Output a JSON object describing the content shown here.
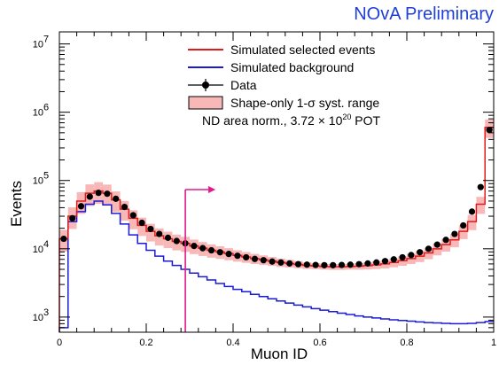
{
  "header": {
    "preliminary_label": "NOvA Preliminary"
  },
  "colors": {
    "brand": "#1f3fd8",
    "selected": "#e01b1b",
    "background": "#1b1bd6",
    "data": "#000000",
    "band": "#f8b8b8",
    "cut": "#e0188c"
  },
  "chart_data": {
    "type": "line",
    "xlabel": "Muon ID",
    "ylabel": "Events",
    "xlim": [
      0,
      1
    ],
    "ylim": [
      600,
      15000000
    ],
    "yscale": "log",
    "x_ticks": [
      "0",
      "0.2",
      "0.4",
      "0.6",
      "0.8",
      "1"
    ],
    "y_ticks": [
      {
        "base": "10",
        "exp": "3"
      },
      {
        "base": "10",
        "exp": "4"
      },
      {
        "base": "10",
        "exp": "5"
      },
      {
        "base": "10",
        "exp": "6"
      },
      {
        "base": "10",
        "exp": "7"
      }
    ],
    "legend": {
      "placement": "top-right",
      "entries": [
        {
          "label": "Simulated selected events",
          "style": "line",
          "series": "selected"
        },
        {
          "label": "Simulated background",
          "style": "line",
          "series": "background"
        },
        {
          "label": "Data",
          "style": "marker",
          "series": "data"
        },
        {
          "label": "Shape-only 1-σ syst. range",
          "style": "box",
          "series": "band"
        }
      ],
      "note": {
        "prefix": "ND area norm., 3.72 × 10",
        "exp": "20",
        "suffix": " POT"
      }
    },
    "cut": {
      "x": 0.29,
      "direction": "right"
    },
    "series": [
      {
        "name": "Simulated selected events",
        "key": "selected",
        "points": [
          [
            0.01,
            14000
          ],
          [
            0.03,
            30000
          ],
          [
            0.05,
            50000
          ],
          [
            0.07,
            65000
          ],
          [
            0.09,
            70000
          ],
          [
            0.11,
            65000
          ],
          [
            0.13,
            52000
          ],
          [
            0.15,
            38000
          ],
          [
            0.17,
            28000
          ],
          [
            0.19,
            22000
          ],
          [
            0.21,
            18000
          ],
          [
            0.23,
            15500
          ],
          [
            0.25,
            14000
          ],
          [
            0.27,
            12800
          ],
          [
            0.29,
            12000
          ],
          [
            0.31,
            11000
          ],
          [
            0.33,
            10200
          ],
          [
            0.35,
            9500
          ],
          [
            0.37,
            9000
          ],
          [
            0.39,
            8500
          ],
          [
            0.41,
            8000
          ],
          [
            0.43,
            7600
          ],
          [
            0.45,
            7200
          ],
          [
            0.47,
            6900
          ],
          [
            0.49,
            6600
          ],
          [
            0.51,
            6300
          ],
          [
            0.53,
            6100
          ],
          [
            0.55,
            5900
          ],
          [
            0.57,
            5700
          ],
          [
            0.59,
            5600
          ],
          [
            0.61,
            5500
          ],
          [
            0.63,
            5450
          ],
          [
            0.65,
            5450
          ],
          [
            0.67,
            5500
          ],
          [
            0.69,
            5550
          ],
          [
            0.71,
            5650
          ],
          [
            0.73,
            5800
          ],
          [
            0.75,
            6000
          ],
          [
            0.77,
            6300
          ],
          [
            0.79,
            6700
          ],
          [
            0.81,
            7200
          ],
          [
            0.83,
            7800
          ],
          [
            0.85,
            8700
          ],
          [
            0.87,
            10000
          ],
          [
            0.89,
            11500
          ],
          [
            0.91,
            13500
          ],
          [
            0.93,
            18000
          ],
          [
            0.95,
            25000
          ],
          [
            0.97,
            45000
          ],
          [
            0.99,
            600000
          ]
        ]
      },
      {
        "name": "Simulated background",
        "key": "background",
        "points": [
          [
            0.01,
            700
          ],
          [
            0.03,
            25000
          ],
          [
            0.05,
            35000
          ],
          [
            0.07,
            45000
          ],
          [
            0.09,
            50000
          ],
          [
            0.11,
            44000
          ],
          [
            0.13,
            33000
          ],
          [
            0.15,
            23000
          ],
          [
            0.17,
            16000
          ],
          [
            0.19,
            12000
          ],
          [
            0.21,
            9500
          ],
          [
            0.23,
            7800
          ],
          [
            0.25,
            6600
          ],
          [
            0.27,
            5700
          ],
          [
            0.29,
            5000
          ],
          [
            0.31,
            4400
          ],
          [
            0.33,
            3900
          ],
          [
            0.35,
            3500
          ],
          [
            0.37,
            3100
          ],
          [
            0.39,
            2800
          ],
          [
            0.41,
            2550
          ],
          [
            0.43,
            2350
          ],
          [
            0.45,
            2150
          ],
          [
            0.47,
            2000
          ],
          [
            0.49,
            1850
          ],
          [
            0.51,
            1720
          ],
          [
            0.53,
            1600
          ],
          [
            0.55,
            1500
          ],
          [
            0.57,
            1410
          ],
          [
            0.59,
            1330
          ],
          [
            0.61,
            1260
          ],
          [
            0.63,
            1200
          ],
          [
            0.65,
            1140
          ],
          [
            0.67,
            1090
          ],
          [
            0.69,
            1040
          ],
          [
            0.71,
            1000
          ],
          [
            0.73,
            970
          ],
          [
            0.75,
            940
          ],
          [
            0.77,
            910
          ],
          [
            0.79,
            890
          ],
          [
            0.81,
            870
          ],
          [
            0.83,
            850
          ],
          [
            0.85,
            830
          ],
          [
            0.87,
            820
          ],
          [
            0.89,
            810
          ],
          [
            0.91,
            800
          ],
          [
            0.93,
            800
          ],
          [
            0.95,
            810
          ],
          [
            0.97,
            830
          ],
          [
            0.99,
            860
          ]
        ]
      },
      {
        "name": "Data",
        "key": "data",
        "points": [
          [
            0.01,
            14000
          ],
          [
            0.03,
            28000
          ],
          [
            0.05,
            42000
          ],
          [
            0.07,
            58000
          ],
          [
            0.09,
            66000
          ],
          [
            0.11,
            64000
          ],
          [
            0.13,
            54000
          ],
          [
            0.15,
            41000
          ],
          [
            0.17,
            31000
          ],
          [
            0.19,
            24000
          ],
          [
            0.21,
            19500
          ],
          [
            0.23,
            16500
          ],
          [
            0.25,
            14500
          ],
          [
            0.27,
            13000
          ],
          [
            0.29,
            12000
          ],
          [
            0.31,
            11000
          ],
          [
            0.33,
            10200
          ],
          [
            0.35,
            9500
          ],
          [
            0.37,
            8900
          ],
          [
            0.39,
            8400
          ],
          [
            0.41,
            7900
          ],
          [
            0.43,
            7500
          ],
          [
            0.45,
            7100
          ],
          [
            0.47,
            6800
          ],
          [
            0.49,
            6500
          ],
          [
            0.51,
            6300
          ],
          [
            0.53,
            6100
          ],
          [
            0.55,
            5950
          ],
          [
            0.57,
            5850
          ],
          [
            0.59,
            5800
          ],
          [
            0.61,
            5750
          ],
          [
            0.63,
            5750
          ],
          [
            0.65,
            5800
          ],
          [
            0.67,
            5850
          ],
          [
            0.69,
            5950
          ],
          [
            0.71,
            6100
          ],
          [
            0.73,
            6300
          ],
          [
            0.75,
            6600
          ],
          [
            0.77,
            7000
          ],
          [
            0.79,
            7500
          ],
          [
            0.81,
            8100
          ],
          [
            0.83,
            8900
          ],
          [
            0.85,
            10000
          ],
          [
            0.87,
            11500
          ],
          [
            0.89,
            13500
          ],
          [
            0.91,
            16500
          ],
          [
            0.93,
            22000
          ],
          [
            0.95,
            35000
          ],
          [
            0.97,
            80000
          ],
          [
            0.99,
            550000
          ]
        ]
      },
      {
        "name": "Shape-only 1-σ syst. range",
        "key": "band",
        "relative_halfwidth": [
          0.35,
          0.35,
          0.35,
          0.35,
          0.35,
          0.34,
          0.33,
          0.32,
          0.31,
          0.3,
          0.29,
          0.28,
          0.27,
          0.26,
          0.25,
          0.24,
          0.23,
          0.22,
          0.21,
          0.2,
          0.19,
          0.18,
          0.17,
          0.16,
          0.15,
          0.14,
          0.13,
          0.12,
          0.11,
          0.1,
          0.1,
          0.1,
          0.1,
          0.1,
          0.11,
          0.12,
          0.13,
          0.14,
          0.15,
          0.16,
          0.17,
          0.18,
          0.19,
          0.2,
          0.21,
          0.22,
          0.23,
          0.25,
          0.28,
          0.3
        ]
      }
    ]
  }
}
